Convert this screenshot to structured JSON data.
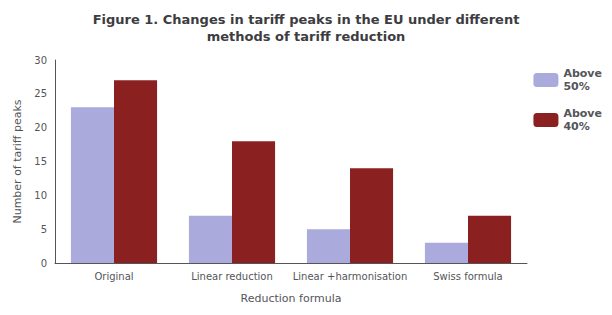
{
  "chart_data": {
    "type": "bar",
    "title": "Figure 1. Changes in tariff peaks in the EU under different\nmethods of tariff reduction",
    "categories": [
      "Original",
      "Linear reduction",
      "Linear +harmonisation",
      "Swiss formula"
    ],
    "series": [
      {
        "name": "Above\n50%",
        "color": "#aaaadd",
        "values": [
          23,
          7,
          5,
          3
        ]
      },
      {
        "name": "Above\n40%",
        "color": "#8b2020",
        "values": [
          27,
          18,
          14,
          7
        ]
      }
    ],
    "ylabel": "Number of tariff peaks",
    "xlabel": "Reduction formula",
    "ylim": [
      0,
      30
    ],
    "yticks": [
      0,
      5,
      10,
      15,
      20,
      25,
      30
    ],
    "legend": "upper right",
    "grid": false
  }
}
